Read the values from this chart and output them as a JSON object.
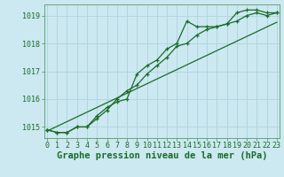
{
  "xlabel": "Graphe pression niveau de la mer (hPa)",
  "background_color": "#cce8f0",
  "grid_color": "#aed4df",
  "line_color": "#1a6b2a",
  "x_values": [
    0,
    1,
    2,
    3,
    4,
    5,
    6,
    7,
    8,
    9,
    10,
    11,
    12,
    13,
    14,
    15,
    16,
    17,
    18,
    19,
    20,
    21,
    22,
    23
  ],
  "series1": [
    1014.9,
    1014.8,
    1014.8,
    1015.0,
    1015.0,
    1015.4,
    1015.7,
    1015.9,
    1016.0,
    1016.9,
    1017.2,
    1017.4,
    1017.8,
    1018.0,
    1018.8,
    1018.6,
    1018.6,
    1018.6,
    1018.7,
    1019.1,
    1019.2,
    1019.2,
    1019.1,
    1019.1
  ],
  "series2": [
    1014.9,
    1014.8,
    1014.8,
    1015.0,
    1015.0,
    1015.3,
    1015.6,
    1016.0,
    1016.3,
    1016.5,
    1016.9,
    1017.2,
    1017.5,
    1017.9,
    1018.0,
    1018.3,
    1018.5,
    1018.6,
    1018.7,
    1018.8,
    1019.0,
    1019.1,
    1019.0,
    1019.1
  ],
  "series3_linear": [
    1014.85,
    1015.02,
    1015.19,
    1015.36,
    1015.53,
    1015.7,
    1015.87,
    1016.04,
    1016.21,
    1016.38,
    1016.55,
    1016.72,
    1016.89,
    1017.06,
    1017.23,
    1017.4,
    1017.57,
    1017.74,
    1017.91,
    1018.08,
    1018.25,
    1018.42,
    1018.59,
    1018.76
  ],
  "ylim": [
    1014.6,
    1019.4
  ],
  "yticks": [
    1015,
    1016,
    1017,
    1018,
    1019
  ],
  "xticks": [
    0,
    1,
    2,
    3,
    4,
    5,
    6,
    7,
    8,
    9,
    10,
    11,
    12,
    13,
    14,
    15,
    16,
    17,
    18,
    19,
    20,
    21,
    22,
    23
  ],
  "xlabel_fontsize": 7.5,
  "tick_fontsize": 6.0,
  "xlabel_color": "#1a6b2a",
  "tick_color": "#1a6b2a",
  "spine_color": "#5a9a6a"
}
